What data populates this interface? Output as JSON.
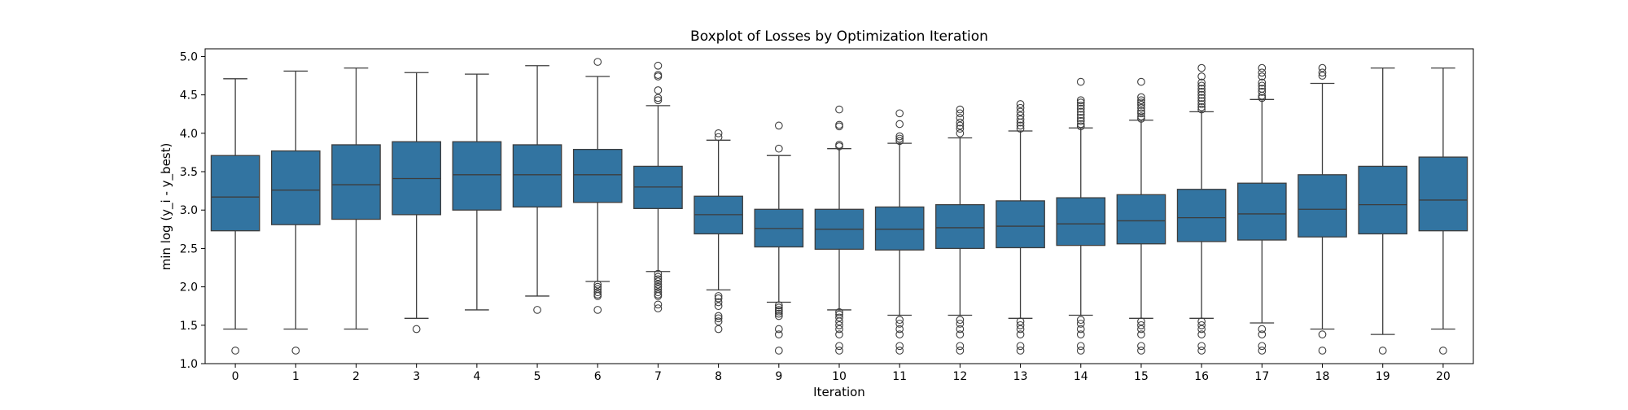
{
  "chart_data": {
    "type": "boxplot",
    "title": "Boxplot of Losses by Optimization Iteration",
    "xlabel": "Iteration",
    "ylabel": "min log (y_i - y_best)",
    "ylim": [
      1.0,
      5.1
    ],
    "yticks": [
      1.0,
      1.5,
      2.0,
      2.5,
      3.0,
      3.5,
      4.0,
      4.5,
      5.0
    ],
    "ytick_labels": [
      "1.0",
      "1.5",
      "2.0",
      "2.5",
      "3.0",
      "3.5",
      "4.0",
      "4.5",
      "5.0"
    ],
    "grid": false,
    "legend": "none",
    "colors": {
      "box_fill": "#3274a1",
      "line": "#3d3d3d",
      "axes": "#000000"
    },
    "categories": [
      "0",
      "1",
      "2",
      "3",
      "4",
      "5",
      "6",
      "7",
      "8",
      "9",
      "10",
      "11",
      "12",
      "13",
      "14",
      "15",
      "16",
      "17",
      "18",
      "19",
      "20"
    ],
    "boxes": [
      {
        "whisker_low": 1.45,
        "q1": 2.73,
        "median": 3.17,
        "q3": 3.71,
        "whisker_high": 4.71,
        "outliers": [
          1.17
        ]
      },
      {
        "whisker_low": 1.45,
        "q1": 2.81,
        "median": 3.26,
        "q3": 3.77,
        "whisker_high": 4.81,
        "outliers": [
          1.17
        ]
      },
      {
        "whisker_low": 1.45,
        "q1": 2.88,
        "median": 3.33,
        "q3": 3.85,
        "whisker_high": 4.85,
        "outliers": []
      },
      {
        "whisker_low": 1.59,
        "q1": 2.94,
        "median": 3.41,
        "q3": 3.89,
        "whisker_high": 4.79,
        "outliers": [
          1.45
        ]
      },
      {
        "whisker_low": 1.7,
        "q1": 3.0,
        "median": 3.46,
        "q3": 3.89,
        "whisker_high": 4.77,
        "outliers": []
      },
      {
        "whisker_low": 1.88,
        "q1": 3.04,
        "median": 3.46,
        "q3": 3.85,
        "whisker_high": 4.88,
        "outliers": [
          1.7
        ]
      },
      {
        "whisker_low": 2.07,
        "q1": 3.1,
        "median": 3.46,
        "q3": 3.79,
        "whisker_high": 4.74,
        "outliers": [
          4.93,
          2.03,
          2.0,
          1.97,
          1.93,
          1.9,
          1.88,
          1.7
        ]
      },
      {
        "whisker_low": 2.2,
        "q1": 3.02,
        "median": 3.3,
        "q3": 3.57,
        "whisker_high": 4.36,
        "outliers": [
          4.88,
          4.76,
          4.74,
          4.56,
          4.46,
          4.43,
          2.17,
          2.13,
          2.1,
          2.07,
          2.03,
          2.0,
          1.97,
          1.93,
          1.9,
          1.88,
          1.77,
          1.72
        ]
      },
      {
        "whisker_low": 1.96,
        "q1": 2.69,
        "median": 2.94,
        "q3": 3.18,
        "whisker_high": 3.91,
        "outliers": [
          4.0,
          3.95,
          1.88,
          1.85,
          1.8,
          1.75,
          1.62,
          1.59,
          1.55,
          1.45
        ]
      },
      {
        "whisker_low": 1.8,
        "q1": 2.52,
        "median": 2.76,
        "q3": 3.01,
        "whisker_high": 3.71,
        "outliers": [
          4.1,
          3.8,
          1.76,
          1.73,
          1.7,
          1.68,
          1.65,
          1.62,
          1.45,
          1.38,
          1.17
        ]
      },
      {
        "whisker_low": 1.7,
        "q1": 2.49,
        "median": 2.75,
        "q3": 3.01,
        "whisker_high": 3.8,
        "outliers": [
          4.31,
          4.11,
          4.09,
          3.85,
          3.83,
          1.67,
          1.64,
          1.6,
          1.55,
          1.5,
          1.45,
          1.38,
          1.23,
          1.17
        ]
      },
      {
        "whisker_low": 1.63,
        "q1": 2.48,
        "median": 2.75,
        "q3": 3.04,
        "whisker_high": 3.87,
        "outliers": [
          4.26,
          4.12,
          3.96,
          3.93,
          3.9,
          1.57,
          1.52,
          1.45,
          1.38,
          1.23,
          1.17
        ]
      },
      {
        "whisker_low": 1.63,
        "q1": 2.5,
        "median": 2.77,
        "q3": 3.07,
        "whisker_high": 3.94,
        "outliers": [
          4.31,
          4.26,
          4.2,
          4.14,
          4.1,
          4.06,
          4.0,
          1.57,
          1.52,
          1.45,
          1.38,
          1.23,
          1.17
        ]
      },
      {
        "whisker_low": 1.59,
        "q1": 2.51,
        "median": 2.79,
        "q3": 3.12,
        "whisker_high": 4.03,
        "outliers": [
          4.38,
          4.33,
          4.28,
          4.23,
          4.18,
          4.14,
          4.1,
          4.06,
          1.55,
          1.5,
          1.45,
          1.38,
          1.23,
          1.17
        ]
      },
      {
        "whisker_low": 1.63,
        "q1": 2.54,
        "median": 2.82,
        "q3": 3.16,
        "whisker_high": 4.07,
        "outliers": [
          4.67,
          4.43,
          4.4,
          4.36,
          4.32,
          4.28,
          4.24,
          4.2,
          4.16,
          4.12,
          4.09,
          1.57,
          1.52,
          1.45,
          1.38,
          1.23,
          1.17
        ]
      },
      {
        "whisker_low": 1.59,
        "q1": 2.56,
        "median": 2.86,
        "q3": 3.2,
        "whisker_high": 4.17,
        "outliers": [
          4.67,
          4.47,
          4.43,
          4.4,
          4.37,
          4.33,
          4.29,
          4.26,
          4.22,
          4.19,
          1.55,
          1.5,
          1.45,
          1.38,
          1.23,
          1.17
        ]
      },
      {
        "whisker_low": 1.59,
        "q1": 2.59,
        "median": 2.9,
        "q3": 3.27,
        "whisker_high": 4.28,
        "outliers": [
          4.85,
          4.74,
          4.66,
          4.62,
          4.58,
          4.54,
          4.5,
          4.46,
          4.42,
          4.38,
          4.34,
          4.31,
          1.55,
          1.5,
          1.45,
          1.38,
          1.23,
          1.17
        ]
      },
      {
        "whisker_low": 1.53,
        "q1": 2.61,
        "median": 2.95,
        "q3": 3.35,
        "whisker_high": 4.44,
        "outliers": [
          4.85,
          4.79,
          4.74,
          4.66,
          4.62,
          4.58,
          4.54,
          4.49,
          4.46,
          1.45,
          1.38,
          1.23,
          1.17
        ]
      },
      {
        "whisker_low": 1.45,
        "q1": 2.65,
        "median": 3.01,
        "q3": 3.46,
        "whisker_high": 4.65,
        "outliers": [
          4.85,
          4.79,
          4.75,
          1.38,
          1.17
        ]
      },
      {
        "whisker_low": 1.38,
        "q1": 2.69,
        "median": 3.07,
        "q3": 3.57,
        "whisker_high": 4.85,
        "outliers": [
          1.17
        ]
      },
      {
        "whisker_low": 1.45,
        "q1": 2.73,
        "median": 3.13,
        "q3": 3.69,
        "whisker_high": 4.85,
        "outliers": [
          1.17
        ]
      }
    ]
  }
}
